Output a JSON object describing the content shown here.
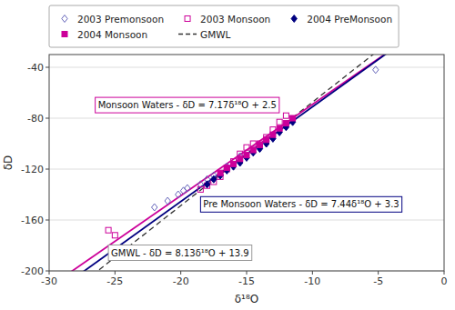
{
  "chart_data": {
    "type": "scatter",
    "xlabel": "δ¹⁸O",
    "ylabel": "δD",
    "xlim": [
      -30,
      0
    ],
    "ylim": [
      -200,
      -30
    ],
    "xticks": [
      -30,
      -25,
      -20,
      -15,
      -10,
      -5,
      0
    ],
    "yticks": [
      -200,
      -160,
      -120,
      -80,
      -40
    ],
    "grid": "y",
    "series": [
      {
        "name": "2003 Premonsoon",
        "type": "scatter",
        "marker": "diamond-open",
        "color": "#6666bb",
        "x": [
          -5.2,
          -13.5,
          -14.0,
          -15.5,
          -16.5,
          -17.5,
          -18.0,
          -18.5,
          -19.5,
          -19.8,
          -20.2,
          -21.0,
          -22.0
        ],
        "y": [
          -42,
          -98,
          -103,
          -110,
          -118,
          -125,
          -128,
          -132,
          -135,
          -137,
          -140,
          -145,
          -150
        ]
      },
      {
        "name": "2003 Monsoon",
        "type": "scatter",
        "marker": "square-open",
        "color": "#cc0099",
        "x": [
          -25.5,
          -25.0,
          -14.5,
          -15.0,
          -15.5,
          -16.0,
          -16.5,
          -17.0,
          -17.5,
          -18.0,
          -18.5,
          -12.0,
          -12.5,
          -13.0,
          -13.5,
          -14.0
        ],
        "y": [
          -168,
          -172,
          -100,
          -103,
          -108,
          -114,
          -120,
          -126,
          -130,
          -133,
          -136,
          -78,
          -83,
          -89,
          -95,
          -100
        ]
      },
      {
        "name": "2004 PreMonsoon",
        "type": "scatter",
        "marker": "diamond",
        "color": "#000080",
        "x": [
          -11.5,
          -12.0,
          -12.5,
          -13.0,
          -13.5,
          -14.0,
          -14.5,
          -15.0,
          -15.5,
          -16.0,
          -16.5,
          -17.0,
          -17.5,
          -18.0
        ],
        "y": [
          -83,
          -87,
          -91,
          -96,
          -100,
          -104,
          -107,
          -111,
          -115,
          -118,
          -121,
          -125,
          -128,
          -132
        ]
      },
      {
        "name": "2004 Monsoon",
        "type": "scatter",
        "marker": "square",
        "color": "#cc0099",
        "x": [
          -11.5,
          -12.0,
          -12.5,
          -13.0,
          -13.5,
          -14.0,
          -14.5,
          -15.0,
          -15.5,
          -16.0,
          -16.5,
          -17.0
        ],
        "y": [
          -80,
          -84,
          -88,
          -93,
          -97,
          -101,
          -105,
          -109,
          -112,
          -116,
          -119,
          -123
        ]
      },
      {
        "name": "GMWL",
        "type": "line",
        "line_style": "dashed",
        "color": "#333333",
        "slope": 8.13,
        "intercept": 13.9
      },
      {
        "type": "line",
        "line_style": "solid",
        "color": "#cc0099",
        "slope": 7.17,
        "intercept": 2.5
      },
      {
        "type": "line",
        "line_style": "solid",
        "color": "#000080",
        "slope": 7.44,
        "intercept": 3.3
      }
    ],
    "annotations": [
      {
        "text": "Monsoon Waters - δD = 7.17δ¹⁸O + 2.5",
        "x": -26.5,
        "y": -64,
        "color": "#cc0099"
      },
      {
        "text": "Pre Monsoon Waters - δD = 7.44δ¹⁸O + 3.3",
        "x": -18.5,
        "y": -142,
        "color": "#000080"
      },
      {
        "text": "GMWL - δD = 8.13δ¹⁸O + 13.9",
        "x": -25.5,
        "y": -180,
        "color": "#999999"
      }
    ]
  }
}
